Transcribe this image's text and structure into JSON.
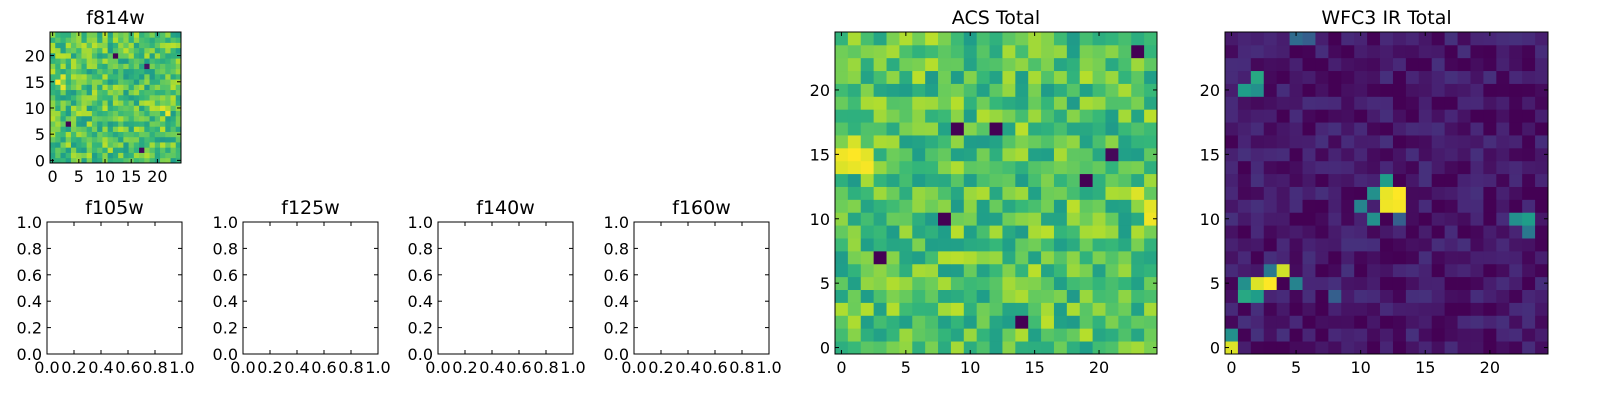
{
  "chart_data": [
    {
      "type": "heatmap",
      "title": "f814w",
      "shape": [
        25,
        25
      ],
      "colormap": "viridis",
      "xticks": [
        "0",
        "5",
        "10",
        "15",
        "20"
      ],
      "yticks": [
        "0",
        "5",
        "10",
        "15",
        "20"
      ],
      "xlim": [
        -0.5,
        24.5
      ],
      "ylim": [
        -0.5,
        24.5
      ],
      "value_range": [
        0,
        1
      ],
      "background": 0.72,
      "noise": 0.18,
      "seed": 11,
      "features": [
        {
          "row": 15,
          "col": 1,
          "value": 1.0
        },
        {
          "row": 14,
          "col": 2,
          "value": 0.96
        },
        {
          "row": 16,
          "col": 2,
          "value": 0.95
        },
        {
          "row": 10,
          "col": 21,
          "value": 0.95
        },
        {
          "row": 9,
          "col": 22,
          "value": 0.98
        },
        {
          "row": 20,
          "col": 12,
          "value": 0.0
        },
        {
          "row": 18,
          "col": 18,
          "value": 0.05
        },
        {
          "row": 7,
          "col": 3,
          "value": 0.0
        },
        {
          "row": 2,
          "col": 17,
          "value": 0.02
        }
      ]
    },
    {
      "type": "empty",
      "title": "f105w",
      "xticks": [
        "0.0",
        "0.2",
        "0.4",
        "0.6",
        "0.8",
        "1.0"
      ],
      "yticks": [
        "0.0",
        "0.2",
        "0.4",
        "0.6",
        "0.8",
        "1.0"
      ],
      "xlim": [
        0,
        1
      ],
      "ylim": [
        0,
        1
      ]
    },
    {
      "type": "empty",
      "title": "f125w",
      "xticks": [
        "0.0",
        "0.2",
        "0.4",
        "0.6",
        "0.8",
        "1.0"
      ],
      "yticks": [
        "0.0",
        "0.2",
        "0.4",
        "0.6",
        "0.8",
        "1.0"
      ],
      "xlim": [
        0,
        1
      ],
      "ylim": [
        0,
        1
      ]
    },
    {
      "type": "empty",
      "title": "f140w",
      "xticks": [
        "0.0",
        "0.2",
        "0.4",
        "0.6",
        "0.8",
        "1.0"
      ],
      "yticks": [
        "0.0",
        "0.2",
        "0.4",
        "0.6",
        "0.8",
        "1.0"
      ],
      "xlim": [
        0,
        1
      ],
      "ylim": [
        0,
        1
      ]
    },
    {
      "type": "empty",
      "title": "f160w",
      "xticks": [
        "0.0",
        "0.2",
        "0.4",
        "0.6",
        "0.8",
        "1.0"
      ],
      "yticks": [
        "0.0",
        "0.2",
        "0.4",
        "0.6",
        "0.8",
        "1.0"
      ],
      "xlim": [
        0,
        1
      ],
      "ylim": [
        0,
        1
      ]
    },
    {
      "type": "heatmap",
      "title": "ACS Total",
      "shape": [
        25,
        25
      ],
      "colormap": "viridis",
      "xticks": [
        "0",
        "5",
        "10",
        "15",
        "20"
      ],
      "yticks": [
        "0",
        "5",
        "10",
        "15",
        "20"
      ],
      "xlim": [
        -0.5,
        24.5
      ],
      "ylim": [
        -0.5,
        24.5
      ],
      "value_range": [
        0,
        1
      ],
      "background": 0.72,
      "noise": 0.18,
      "seed": 23,
      "features": [
        {
          "row": 15,
          "col": 0,
          "value": 0.98
        },
        {
          "row": 15,
          "col": 1,
          "value": 1.0
        },
        {
          "row": 14,
          "col": 1,
          "value": 0.97
        },
        {
          "row": 14,
          "col": 2,
          "value": 0.99
        },
        {
          "row": 15,
          "col": 2,
          "value": 0.96
        },
        {
          "row": 14,
          "col": 0,
          "value": 0.95
        },
        {
          "row": 16,
          "col": 1,
          "value": 0.94
        },
        {
          "row": 10,
          "col": 24,
          "value": 0.98
        },
        {
          "row": 11,
          "col": 24,
          "value": 0.96
        },
        {
          "row": 12,
          "col": 23,
          "value": 0.95
        },
        {
          "row": 17,
          "col": 9,
          "value": 0.0
        },
        {
          "row": 17,
          "col": 12,
          "value": 0.0
        },
        {
          "row": 13,
          "col": 19,
          "value": 0.0
        },
        {
          "row": 10,
          "col": 8,
          "value": 0.0
        },
        {
          "row": 7,
          "col": 3,
          "value": 0.0
        },
        {
          "row": 2,
          "col": 14,
          "value": 0.0
        },
        {
          "row": 23,
          "col": 23,
          "value": 0.0
        },
        {
          "row": 15,
          "col": 21,
          "value": 0.02
        }
      ]
    },
    {
      "type": "heatmap",
      "title": "WFC3 IR Total",
      "shape": [
        25,
        25
      ],
      "colormap": "viridis",
      "xticks": [
        "0",
        "5",
        "10",
        "15",
        "20"
      ],
      "yticks": [
        "0",
        "5",
        "10",
        "15",
        "20"
      ],
      "xlim": [
        -0.5,
        24.5
      ],
      "ylim": [
        -0.5,
        24.5
      ],
      "value_range": [
        0,
        1
      ],
      "background": 0.06,
      "noise": 0.08,
      "seed": 37,
      "features": [
        {
          "row": 12,
          "col": 12,
          "value": 0.97
        },
        {
          "row": 12,
          "col": 13,
          "value": 1.0
        },
        {
          "row": 11,
          "col": 12,
          "value": 0.98
        },
        {
          "row": 11,
          "col": 13,
          "value": 0.99
        },
        {
          "row": 12,
          "col": 11,
          "value": 0.5
        },
        {
          "row": 11,
          "col": 10,
          "value": 0.45
        },
        {
          "row": 13,
          "col": 12,
          "value": 0.55
        },
        {
          "row": 10,
          "col": 11,
          "value": 0.5
        },
        {
          "row": 10,
          "col": 13,
          "value": 0.3
        },
        {
          "row": 5,
          "col": 2,
          "value": 0.95
        },
        {
          "row": 5,
          "col": 3,
          "value": 1.0
        },
        {
          "row": 6,
          "col": 4,
          "value": 0.93
        },
        {
          "row": 4,
          "col": 1,
          "value": 0.6
        },
        {
          "row": 4,
          "col": 2,
          "value": 0.55
        },
        {
          "row": 5,
          "col": 1,
          "value": 0.5
        },
        {
          "row": 6,
          "col": 3,
          "value": 0.4
        },
        {
          "row": 5,
          "col": 5,
          "value": 0.45
        },
        {
          "row": 20,
          "col": 1,
          "value": 0.55
        },
        {
          "row": 20,
          "col": 2,
          "value": 0.5
        },
        {
          "row": 21,
          "col": 2,
          "value": 0.6
        },
        {
          "row": 10,
          "col": 22,
          "value": 0.5
        },
        {
          "row": 10,
          "col": 23,
          "value": 0.55
        },
        {
          "row": 9,
          "col": 23,
          "value": 0.4
        },
        {
          "row": 0,
          "col": 0,
          "value": 0.95
        },
        {
          "row": 1,
          "col": 0,
          "value": 0.5
        },
        {
          "row": 24,
          "col": 5,
          "value": 0.35
        },
        {
          "row": 24,
          "col": 6,
          "value": 0.3
        },
        {
          "row": 4,
          "col": 8,
          "value": 0.3
        }
      ]
    }
  ]
}
